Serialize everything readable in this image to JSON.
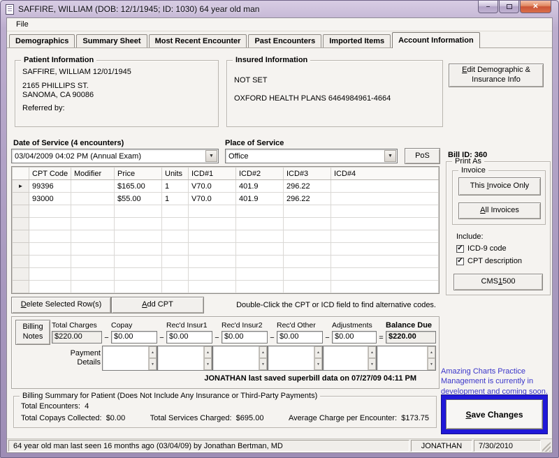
{
  "colors": {
    "titlebar_lavender": "#b0a1c4",
    "close_button_red": "#cb5436",
    "save_border_blue": "#2018d8",
    "promo_text_blue": "#3a35c9"
  },
  "window": {
    "title": "SAFFIRE, WILLIAM (DOB: 12/1/1945; ID: 1030) 64 year old man",
    "controls": {
      "minimize": "–",
      "close": "✕"
    }
  },
  "menu": {
    "file": "File"
  },
  "tabs": [
    {
      "label": "Demographics",
      "active": false
    },
    {
      "label": "Summary Sheet",
      "active": false
    },
    {
      "label": "Most Recent Encounter",
      "active": false
    },
    {
      "label": "Past Encounters",
      "active": false
    },
    {
      "label": "Imported Items",
      "active": false
    },
    {
      "label": "Account Information",
      "active": true
    }
  ],
  "patient_info": {
    "legend": "Patient Information",
    "name_line": "SAFFIRE, WILLIAM  12/01/1945",
    "address_line1": "2165 PHILLIPS ST.",
    "address_line2": "SANOMA, CA  90086",
    "referred_by_label": "Referred by:"
  },
  "insured_info": {
    "legend": "Insured Information",
    "primary": "NOT SET",
    "secondary": "OXFORD HEALTH PLANS  6464984961-4664"
  },
  "edit_demo_button": {
    "key": "E",
    "line1_rest": "dit Demographic &",
    "line2": "Insurance Info"
  },
  "date_of_service": {
    "label": "Date of Service (4 encounters)",
    "value": "03/04/2009 04:02 PM (Annual Exam)"
  },
  "place_of_service": {
    "label": "Place of Service",
    "value": "Office"
  },
  "pos_button_label": "PoS",
  "bill_panel": {
    "bill_id": "Bill ID: 360",
    "print_as_legend": "Print As",
    "invoice_legend": "Invoice",
    "this_invoice_button": {
      "pre": "This ",
      "key": "I",
      "post": "nvoice Only"
    },
    "all_invoices_button": {
      "pre": "",
      "key": "A",
      "post": "ll Invoices"
    },
    "include_label": "Include:",
    "options": [
      {
        "label": "ICD-9 code",
        "checked": true
      },
      {
        "label": "CPT description",
        "checked": true
      }
    ],
    "cms1500_button": {
      "pre": "CMS",
      "key": "1",
      "post": "500"
    }
  },
  "cpt_table": {
    "row_marker": "►",
    "headers": [
      "CPT Code",
      "Modifier",
      "Price",
      "Units",
      "ICD#1",
      "ICD#2",
      "ICD#3",
      "ICD#4"
    ],
    "rows": [
      {
        "selected": true,
        "cells": [
          "99396",
          "",
          "$165.00",
          "1",
          "V70.0",
          "401.9",
          "296.22",
          ""
        ]
      },
      {
        "selected": false,
        "cells": [
          "93000",
          "",
          "$55.00",
          "1",
          "V70.0",
          "401.9",
          "296.22",
          ""
        ]
      }
    ],
    "empty_rows": 7
  },
  "table_actions": {
    "delete_button": {
      "pre": "",
      "key": "D",
      "post": "elete Selected Row(s)"
    },
    "add_cpt_button": {
      "pre": "",
      "key": "A",
      "post": "dd CPT"
    },
    "hint": "Double-Click the CPT or ICD field to find alternative codes."
  },
  "billing": {
    "notes_button": {
      "line1": "Billing",
      "line2": "Notes"
    },
    "fields": [
      {
        "label": "Total Charges",
        "value": "$220.00",
        "readonly": true,
        "bold": false,
        "op_after": "−"
      },
      {
        "label": "Copay",
        "value": "$0.00",
        "readonly": false,
        "bold": false,
        "op_after": "−"
      },
      {
        "label": "Rec'd Insur1",
        "value": "$0.00",
        "readonly": false,
        "bold": false,
        "op_after": "−"
      },
      {
        "label": "Rec'd Insur2",
        "value": "$0.00",
        "readonly": false,
        "bold": false,
        "op_after": "−"
      },
      {
        "label": "Rec'd Other",
        "value": "$0.00",
        "readonly": false,
        "bold": false,
        "op_after": "−"
      },
      {
        "label": "Adjustments",
        "value": "$0.00",
        "readonly": false,
        "bold": false,
        "op_after": "="
      },
      {
        "label": "Balance Due",
        "value": "$220.00",
        "readonly": true,
        "bold": true,
        "op_after": ""
      }
    ],
    "payment_details_label": {
      "line1": "Payment",
      "line2": "Details"
    },
    "payment_box_count": 6,
    "last_saved": "JONATHAN last saved superbill data on 07/27/09 04:11 PM"
  },
  "billing_summary": {
    "legend": "Billing Summary for Patient (Does Not Include Any Insurance or Third-Party Payments)",
    "encounters_label": "Total Encounters:",
    "encounters_value": "4",
    "copays_label": "Total Copays Collected:",
    "copays_value": "$0.00",
    "services_label": "Total Services Charged:",
    "services_value": "$695.00",
    "average_label": "Average Charge per Encounter:",
    "average_value": "$173.75"
  },
  "promo": {
    "text": "Amazing Charts Practice Management is currently in development and coming soon."
  },
  "save_button": {
    "pre": "",
    "key": "S",
    "post": "ave Changes"
  },
  "status_bar": {
    "message": "64 year old man last seen 16 months ago (03/04/09) by Jonathan Bertman, MD",
    "user": "JONATHAN",
    "date": "7/30/2010"
  }
}
